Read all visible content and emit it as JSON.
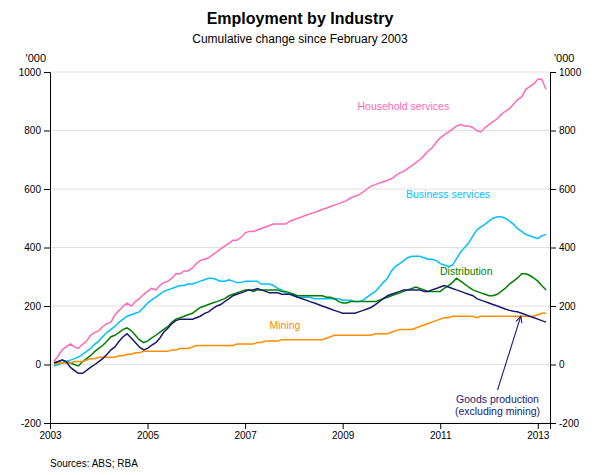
{
  "chart_data": {
    "type": "line",
    "title": "Employment by Industry",
    "subtitle": "Cumulative change since February 2003",
    "ylabel": "'000",
    "y2label": "'000",
    "source": "Sources: ABS; RBA",
    "xlim": [
      2003.0,
      2013.25
    ],
    "xticks": [
      2003,
      2005,
      2007,
      2009,
      2011,
      2013
    ],
    "ylim": [
      -200,
      1000
    ],
    "yticks": [
      -200,
      0,
      200,
      400,
      600,
      800,
      1000
    ],
    "y2lim": [
      -200,
      1000
    ],
    "y2ticks": [
      -200,
      0,
      200,
      400,
      600,
      800,
      1000
    ],
    "grid": true,
    "x": [
      2003.08,
      2003.17,
      2003.25,
      2003.33,
      2003.42,
      2003.5,
      2003.58,
      2003.67,
      2003.75,
      2003.83,
      2003.92,
      2004.0,
      2004.08,
      2004.17,
      2004.25,
      2004.33,
      2004.42,
      2004.5,
      2004.58,
      2004.67,
      2004.75,
      2004.83,
      2004.92,
      2005.0,
      2005.08,
      2005.17,
      2005.25,
      2005.33,
      2005.42,
      2005.5,
      2005.58,
      2005.67,
      2005.75,
      2005.83,
      2005.92,
      2006.0,
      2006.08,
      2006.17,
      2006.25,
      2006.33,
      2006.42,
      2006.5,
      2006.58,
      2006.67,
      2006.75,
      2006.83,
      2006.92,
      2007.0,
      2007.08,
      2007.17,
      2007.25,
      2007.33,
      2007.42,
      2007.5,
      2007.58,
      2007.67,
      2007.75,
      2007.83,
      2007.92,
      2008.0,
      2008.08,
      2008.17,
      2008.25,
      2008.33,
      2008.42,
      2008.5,
      2008.58,
      2008.67,
      2008.75,
      2008.83,
      2008.92,
      2009.0,
      2009.08,
      2009.17,
      2009.25,
      2009.33,
      2009.42,
      2009.5,
      2009.58,
      2009.67,
      2009.75,
      2009.83,
      2009.92,
      2010.0,
      2010.08,
      2010.17,
      2010.25,
      2010.33,
      2010.42,
      2010.5,
      2010.58,
      2010.67,
      2010.75,
      2010.83,
      2010.92,
      2011.0,
      2011.08,
      2011.17,
      2011.25,
      2011.33,
      2011.42,
      2011.5,
      2011.58,
      2011.67,
      2011.75,
      2011.83,
      2011.92,
      2012.0,
      2012.08,
      2012.17,
      2012.25,
      2012.33,
      2012.42,
      2012.5,
      2012.58,
      2012.67,
      2012.75,
      2012.83,
      2012.92,
      2013.0,
      2013.08,
      2013.17
    ],
    "series": [
      {
        "name": "Household services",
        "color": "#ff69b4",
        "values": [
          10,
          30,
          50,
          60,
          70,
          60,
          55,
          70,
          80,
          100,
          110,
          115,
          130,
          140,
          145,
          170,
          185,
          200,
          210,
          200,
          215,
          225,
          240,
          250,
          260,
          255,
          270,
          280,
          285,
          295,
          310,
          310,
          320,
          320,
          330,
          345,
          355,
          360,
          365,
          375,
          385,
          395,
          405,
          415,
          425,
          425,
          435,
          450,
          455,
          455,
          460,
          465,
          470,
          475,
          480,
          480,
          480,
          480,
          490,
          495,
          500,
          505,
          510,
          515,
          520,
          525,
          530,
          535,
          540,
          545,
          550,
          555,
          560,
          570,
          575,
          580,
          590,
          600,
          610,
          615,
          620,
          625,
          630,
          635,
          645,
          655,
          660,
          670,
          680,
          690,
          700,
          715,
          730,
          740,
          760,
          775,
          785,
          795,
          805,
          815,
          820,
          815,
          815,
          810,
          800,
          795,
          810,
          820,
          830,
          840,
          855,
          865,
          875,
          890,
          905,
          915,
          940,
          950,
          960,
          975,
          975,
          940
        ]
      },
      {
        "name": "Business services",
        "color": "#00bfff",
        "values": [
          -5,
          0,
          5,
          10,
          15,
          20,
          25,
          35,
          45,
          55,
          70,
          80,
          95,
          110,
          120,
          130,
          145,
          155,
          165,
          170,
          175,
          180,
          195,
          210,
          220,
          230,
          240,
          250,
          255,
          260,
          265,
          270,
          270,
          275,
          275,
          280,
          285,
          290,
          295,
          295,
          290,
          285,
          285,
          290,
          285,
          280,
          280,
          285,
          285,
          285,
          285,
          275,
          275,
          275,
          270,
          260,
          255,
          245,
          240,
          235,
          230,
          230,
          230,
          230,
          225,
          225,
          225,
          225,
          225,
          225,
          225,
          220,
          220,
          220,
          215,
          215,
          220,
          230,
          240,
          250,
          265,
          280,
          295,
          320,
          335,
          345,
          355,
          365,
          370,
          370,
          370,
          365,
          360,
          360,
          355,
          345,
          340,
          335,
          340,
          360,
          385,
          400,
          415,
          440,
          460,
          470,
          480,
          490,
          500,
          505,
          505,
          500,
          490,
          480,
          465,
          455,
          445,
          440,
          435,
          430,
          440,
          445
        ]
      },
      {
        "name": "Distribution",
        "color": "#008000",
        "values": [
          5,
          10,
          15,
          10,
          5,
          0,
          -5,
          10,
          20,
          30,
          45,
          55,
          65,
          80,
          95,
          100,
          110,
          120,
          125,
          115,
          100,
          85,
          75,
          80,
          90,
          100,
          110,
          120,
          130,
          145,
          155,
          160,
          165,
          170,
          175,
          185,
          195,
          200,
          205,
          210,
          215,
          220,
          225,
          235,
          240,
          245,
          250,
          255,
          255,
          250,
          255,
          255,
          255,
          255,
          255,
          255,
          250,
          250,
          245,
          240,
          235,
          235,
          235,
          235,
          235,
          235,
          235,
          230,
          230,
          225,
          215,
          210,
          210,
          215,
          215,
          215,
          215,
          215,
          215,
          215,
          220,
          225,
          230,
          235,
          240,
          245,
          250,
          255,
          260,
          265,
          260,
          255,
          250,
          250,
          250,
          250,
          260,
          270,
          280,
          295,
          285,
          275,
          265,
          255,
          250,
          245,
          240,
          235,
          235,
          240,
          250,
          260,
          275,
          285,
          295,
          310,
          310,
          305,
          295,
          285,
          270,
          255
        ]
      },
      {
        "name": "Mining",
        "color": "#ff8c00",
        "values": [
          0,
          5,
          5,
          5,
          5,
          10,
          10,
          10,
          15,
          20,
          20,
          25,
          25,
          25,
          25,
          25,
          30,
          30,
          35,
          35,
          40,
          40,
          45,
          45,
          45,
          45,
          45,
          45,
          45,
          50,
          50,
          55,
          55,
          55,
          60,
          65,
          65,
          65,
          65,
          65,
          65,
          65,
          65,
          65,
          65,
          70,
          70,
          70,
          70,
          70,
          75,
          75,
          80,
          80,
          80,
          80,
          85,
          85,
          85,
          85,
          85,
          85,
          85,
          85,
          85,
          85,
          85,
          90,
          95,
          100,
          100,
          100,
          100,
          100,
          100,
          100,
          100,
          100,
          100,
          105,
          105,
          105,
          105,
          110,
          115,
          120,
          120,
          120,
          120,
          125,
          130,
          135,
          140,
          145,
          150,
          155,
          160,
          160,
          165,
          165,
          165,
          165,
          165,
          165,
          160,
          165,
          165,
          165,
          165,
          165,
          165,
          165,
          165,
          165,
          165,
          165,
          165,
          165,
          165,
          170,
          175,
          175
        ]
      },
      {
        "name": "Goods production\n(excluding mining)",
        "color": "#191970",
        "values": [
          5,
          10,
          15,
          10,
          -10,
          -20,
          -30,
          -30,
          -20,
          -10,
          0,
          10,
          20,
          35,
          50,
          60,
          80,
          95,
          105,
          90,
          75,
          60,
          50,
          55,
          65,
          75,
          90,
          110,
          125,
          140,
          150,
          155,
          155,
          155,
          155,
          160,
          165,
          175,
          180,
          190,
          200,
          205,
          215,
          225,
          235,
          240,
          245,
          250,
          255,
          255,
          260,
          255,
          250,
          245,
          245,
          245,
          240,
          240,
          240,
          235,
          230,
          225,
          220,
          215,
          210,
          205,
          200,
          195,
          190,
          185,
          180,
          175,
          175,
          175,
          175,
          180,
          185,
          190,
          195,
          205,
          215,
          225,
          235,
          240,
          245,
          250,
          255,
          255,
          255,
          255,
          255,
          250,
          250,
          255,
          260,
          265,
          270,
          265,
          260,
          255,
          250,
          245,
          240,
          235,
          225,
          220,
          215,
          210,
          205,
          200,
          195,
          190,
          185,
          182,
          180,
          175,
          170,
          165,
          160,
          155,
          150,
          145
        ]
      }
    ]
  }
}
